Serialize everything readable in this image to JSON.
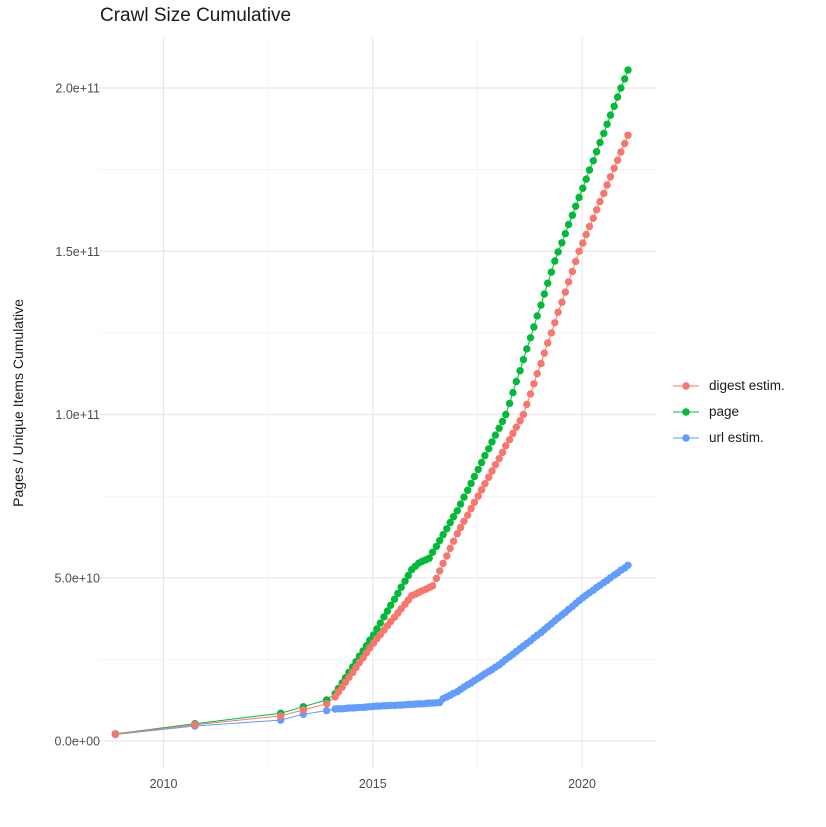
{
  "title": "Crawl Size Cumulative",
  "y_axis": {
    "label": "Pages / Unique Items Cumulative",
    "ticks": [
      {
        "value": 0,
        "label": "0.0e+00"
      },
      {
        "value": 50,
        "label": "5.0e+10"
      },
      {
        "value": 100,
        "label": "1.0e+11"
      },
      {
        "value": 150,
        "label": "1.5e+11"
      },
      {
        "value": 200,
        "label": "2.0e+11"
      }
    ],
    "minor_ticks": [
      25,
      75,
      125,
      175
    ]
  },
  "x_axis": {
    "ticks": [
      {
        "value": 2010,
        "label": "2010"
      },
      {
        "value": 2015,
        "label": "2015"
      },
      {
        "value": 2020,
        "label": "2020"
      }
    ],
    "minor_ticks": [
      2012.5,
      2017.5
    ]
  },
  "legend": {
    "entries": [
      {
        "name": "digest estim.",
        "color": "#F8766D"
      },
      {
        "name": "page",
        "color": "#00BA38"
      },
      {
        "name": "url estim.",
        "color": "#619CFF"
      }
    ]
  },
  "chart_data": {
    "type": "scatter",
    "title": "Crawl Size Cumulative",
    "xlabel": "",
    "ylabel": "Pages / Unique Items Cumulative",
    "legend_position": "right",
    "grid": true,
    "x_range": [
      2008.3,
      2021.8
    ],
    "y_range_e9": [
      0,
      215
    ],
    "value_unit": 1000000000,
    "monthly_years": [
      2014.1,
      2014.18,
      2014.27,
      2014.35,
      2014.43,
      2014.52,
      2014.6,
      2014.68,
      2014.77,
      2014.85,
      2014.93,
      2015.02,
      2015.1,
      2015.18,
      2015.27,
      2015.35,
      2015.43,
      2015.52,
      2015.6,
      2015.68,
      2015.77,
      2015.85,
      2015.93,
      2016.02,
      2016.1,
      2016.18,
      2016.27,
      2016.35,
      2016.43,
      2016.52,
      2016.6,
      2016.68,
      2016.77,
      2016.85,
      2016.93,
      2017.02,
      2017.1,
      2017.18,
      2017.27,
      2017.35,
      2017.43,
      2017.52,
      2017.6,
      2017.68,
      2017.77,
      2017.85,
      2017.93,
      2018.02,
      2018.1,
      2018.18,
      2018.27,
      2018.35,
      2018.43,
      2018.52,
      2018.6,
      2018.68,
      2018.77,
      2018.85,
      2018.93,
      2019.02,
      2019.1,
      2019.18,
      2019.27,
      2019.35,
      2019.43,
      2019.52,
      2019.6,
      2019.68,
      2019.77,
      2019.85,
      2019.93,
      2020.02,
      2020.1,
      2020.18,
      2020.27,
      2020.35,
      2020.43,
      2020.52,
      2020.6,
      2020.68,
      2020.77,
      2020.85,
      2020.93,
      2021.02,
      2021.1
    ],
    "series": [
      {
        "name": "digest estim.",
        "color": "#F8766D",
        "points_early": [
          [
            2008.85,
            2.1
          ],
          [
            2010.75,
            5.0
          ],
          [
            2012.8,
            7.7
          ],
          [
            2013.34,
            9.5
          ],
          [
            2013.9,
            11.4
          ]
        ],
        "monthly_values_e9": [
          13.5,
          15.0,
          16.5,
          18.0,
          19.5,
          21.0,
          22.5,
          24.0,
          25.5,
          27.0,
          28.5,
          30.0,
          31.3,
          32.6,
          34.0,
          35.3,
          36.6,
          37.9,
          39.2,
          40.5,
          41.9,
          43.2,
          44.5,
          45.0,
          45.5,
          46.0,
          46.5,
          47.0,
          47.5,
          49.8,
          52.1,
          54.4,
          56.7,
          59.0,
          61.2,
          63.5,
          65.4,
          67.3,
          69.2,
          71.2,
          73.1,
          75.0,
          76.9,
          78.8,
          80.8,
          82.7,
          84.6,
          86.5,
          88.4,
          90.4,
          92.3,
          94.2,
          96.1,
          98.1,
          100.0,
          103.1,
          106.3,
          109.4,
          112.5,
          115.6,
          118.8,
          121.9,
          125.0,
          128.1,
          131.3,
          134.4,
          137.5,
          140.6,
          143.8,
          146.9,
          150.0,
          152.5,
          155.1,
          157.6,
          160.1,
          162.7,
          165.2,
          167.7,
          170.3,
          172.8,
          175.4,
          177.9,
          180.4,
          183.0,
          185.5
        ]
      },
      {
        "name": "page",
        "color": "#00BA38",
        "points_early": [
          [
            2008.85,
            2.2
          ],
          [
            2010.75,
            5.3
          ],
          [
            2012.8,
            8.5
          ],
          [
            2013.34,
            10.5
          ],
          [
            2013.9,
            12.6
          ]
        ],
        "monthly_values_e9": [
          14.5,
          16.1,
          17.8,
          19.4,
          21.0,
          22.7,
          24.3,
          26.0,
          27.6,
          29.2,
          30.9,
          32.5,
          34.3,
          36.1,
          38.0,
          39.8,
          41.6,
          43.4,
          45.2,
          47.1,
          48.9,
          50.7,
          52.5,
          53.5,
          54.5,
          55.0,
          55.5,
          56.0,
          57.8,
          59.6,
          61.4,
          63.2,
          65.0,
          66.9,
          68.7,
          70.5,
          72.6,
          74.7,
          76.8,
          78.9,
          81.0,
          83.2,
          85.3,
          87.4,
          89.5,
          91.6,
          93.7,
          95.8,
          97.9,
          100.0,
          103.4,
          106.7,
          110.1,
          113.4,
          116.8,
          120.1,
          123.5,
          126.8,
          130.2,
          133.5,
          136.9,
          140.2,
          143.6,
          147.0,
          149.8,
          152.6,
          155.4,
          158.2,
          161.0,
          163.8,
          166.5,
          169.3,
          172.1,
          174.9,
          177.7,
          180.5,
          183.3,
          186.1,
          188.9,
          191.7,
          194.4,
          197.2,
          200.0,
          202.8,
          205.5
        ]
      },
      {
        "name": "url estim.",
        "color": "#619CFF",
        "points_early": [
          [
            2008.85,
            2.0
          ],
          [
            2010.75,
            4.6
          ],
          [
            2012.8,
            6.4
          ],
          [
            2013.34,
            8.2
          ],
          [
            2013.9,
            9.3
          ]
        ],
        "monthly_values_e9": [
          9.8,
          9.9,
          9.9,
          10.0,
          10.1,
          10.1,
          10.2,
          10.3,
          10.3,
          10.4,
          10.5,
          10.6,
          10.7,
          10.7,
          10.8,
          10.8,
          10.9,
          10.9,
          11.0,
          11.0,
          11.1,
          11.2,
          11.2,
          11.3,
          11.4,
          11.4,
          11.5,
          11.6,
          11.6,
          11.7,
          11.8,
          13.0,
          13.5,
          14.0,
          14.6,
          15.1,
          15.8,
          16.5,
          17.2,
          17.8,
          18.5,
          19.2,
          19.9,
          20.6,
          21.3,
          21.9,
          22.6,
          23.3,
          24.1,
          25.0,
          25.8,
          26.6,
          27.4,
          28.3,
          29.1,
          29.9,
          30.7,
          31.6,
          32.4,
          33.2,
          34.1,
          35.0,
          35.9,
          36.8,
          37.7,
          38.6,
          39.4,
          40.3,
          41.2,
          42.1,
          43.0,
          43.9,
          44.7,
          45.4,
          46.2,
          47.0,
          47.7,
          48.5,
          49.2,
          50.0,
          50.8,
          51.5,
          52.3,
          53.0,
          53.8
        ]
      }
    ]
  }
}
